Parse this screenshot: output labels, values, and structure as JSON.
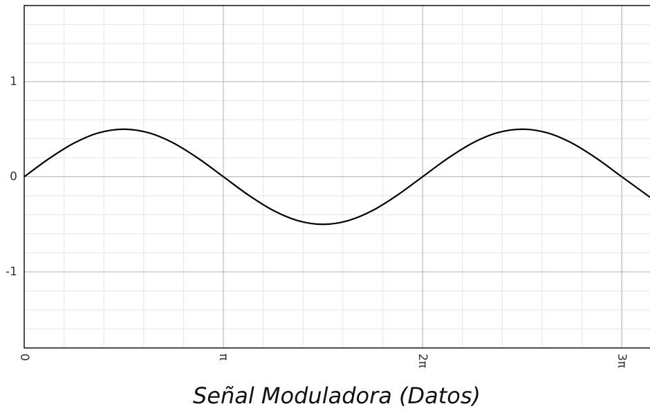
{
  "chart_data": {
    "type": "line",
    "xlabel": "Señal Moduladora (Datos)",
    "x": [
      0,
      0.393,
      0.785,
      1.178,
      1.571,
      1.963,
      2.356,
      2.749,
      3.142,
      3.534,
      3.927,
      4.32,
      4.712,
      5.105,
      5.498,
      5.89,
      6.283,
      6.676,
      7.069,
      7.461,
      7.854,
      8.247,
      8.639,
      9.032,
      9.425,
      9.87
    ],
    "series": [
      {
        "color": "#000000",
        "values": [
          0,
          0.1913,
          0.3536,
          0.4619,
          0.5,
          0.4619,
          0.3536,
          0.1913,
          0,
          -0.1913,
          -0.3536,
          -0.4619,
          -0.5,
          -0.4619,
          -0.3536,
          -0.1913,
          0,
          0.1913,
          0.3536,
          0.4619,
          0.5,
          0.4619,
          0.3536,
          0.1913,
          0,
          -0.215
        ]
      }
    ],
    "xlim": [
      0,
      9.87
    ],
    "ylim": [
      -1.8,
      1.8
    ],
    "xticks": [
      0,
      {
        "value": 3.1416,
        "label": "π"
      },
      {
        "value": 6.2832,
        "label": "2π"
      },
      {
        "value": 9.4248,
        "label": "3π"
      }
    ],
    "yticks": [
      -1,
      0,
      1
    ],
    "grid": true,
    "minor_grid": 5
  }
}
